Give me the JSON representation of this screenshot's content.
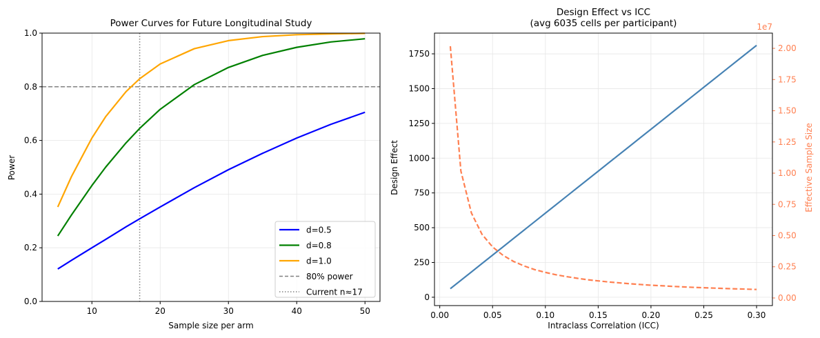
{
  "chart_data": [
    {
      "type": "line",
      "title": "Power Curves for Future Longitudinal Study",
      "xlabel": "Sample size per arm",
      "ylabel": "Power",
      "xlim": [
        2.7,
        52.2
      ],
      "ylim": [
        0,
        1
      ],
      "xticks": [
        "10",
        "20",
        "30",
        "40",
        "50"
      ],
      "yticks": [
        "0.0",
        "0.2",
        "0.4",
        "0.6",
        "0.8",
        "1.0"
      ],
      "grid": true,
      "legend_position": "lower-right",
      "x": [
        5,
        7,
        10,
        12,
        15,
        17,
        20,
        25,
        30,
        35,
        40,
        45,
        50
      ],
      "series": [
        {
          "name": "d=0.5",
          "color": "#0000ff",
          "values": [
            0.121,
            0.153,
            0.2,
            0.231,
            0.278,
            0.308,
            0.352,
            0.424,
            0.491,
            0.552,
            0.609,
            0.66,
            0.705
          ]
        },
        {
          "name": "d=0.8",
          "color": "#008000",
          "values": [
            0.244,
            0.322,
            0.432,
            0.5,
            0.591,
            0.645,
            0.716,
            0.808,
            0.872,
            0.917,
            0.947,
            0.967,
            0.979
          ]
        },
        {
          "name": "d=1.0",
          "color": "#ffa500",
          "values": [
            0.352,
            0.465,
            0.609,
            0.688,
            0.782,
            0.83,
            0.885,
            0.942,
            0.972,
            0.987,
            0.994,
            0.997,
            0.999
          ]
        }
      ],
      "reference_lines": [
        {
          "name": "80% power",
          "orientation": "horizontal",
          "value": 0.8,
          "style": "dashed",
          "color": "#808080"
        },
        {
          "name": "Current n≈17",
          "orientation": "vertical",
          "value": 17,
          "style": "dotted",
          "color": "#808080"
        }
      ]
    },
    {
      "type": "line",
      "title": "Design Effect vs ICC",
      "subtitle": "(avg 6035 cells per participant)",
      "xlabel": "Intraclass Correlation (ICC)",
      "ylabel": "Design Effect",
      "y2label": "Effective Sample Size",
      "y2_offset_label": "1e7",
      "xlim": [
        -0.005,
        0.315
      ],
      "ylim": [
        -60,
        1899
      ],
      "y2lim": [
        -0.061,
        2.122
      ],
      "xticks": [
        "0.00",
        "0.05",
        "0.10",
        "0.15",
        "0.20",
        "0.25",
        "0.30"
      ],
      "yticks": [
        "0",
        "250",
        "500",
        "750",
        "1000",
        "1250",
        "1500",
        "1750"
      ],
      "y2ticks": [
        "0.00",
        "0.25",
        "0.50",
        "0.75",
        "1.00",
        "1.25",
        "1.50",
        "1.75",
        "2.00"
      ],
      "grid": true,
      "x": [
        0.01,
        0.02,
        0.03,
        0.04,
        0.05,
        0.06,
        0.07,
        0.08,
        0.09,
        0.1,
        0.11,
        0.12,
        0.13,
        0.14,
        0.15,
        0.16,
        0.17,
        0.18,
        0.19,
        0.2,
        0.21,
        0.22,
        0.23,
        0.24,
        0.25,
        0.26,
        0.27,
        0.28,
        0.29,
        0.3
      ],
      "series": [
        {
          "axis": "left",
          "color": "#4682b4",
          "style": "solid",
          "values": [
            61.3,
            121.7,
            182.0,
            242.4,
            302.7,
            363.0,
            423.4,
            483.7,
            544.1,
            604.4,
            664.7,
            725.1,
            785.4,
            845.8,
            906.1,
            966.4,
            1026.8,
            1087.1,
            1147.5,
            1207.8,
            1268.1,
            1328.5,
            1388.8,
            1449.2,
            1509.5,
            1569.8,
            1630.2,
            1690.5,
            1750.9,
            1811.2
          ]
        },
        {
          "axis": "right",
          "color": "#ff7f50",
          "style": "dashed",
          "values": [
            2.017,
            1.017,
            0.68,
            0.51,
            0.409,
            0.341,
            0.292,
            0.256,
            0.227,
            0.205,
            0.186,
            0.171,
            0.158,
            0.146,
            0.137,
            0.128,
            0.121,
            0.114,
            0.108,
            0.102,
            0.098,
            0.093,
            0.089,
            0.085,
            0.082,
            0.079,
            0.076,
            0.073,
            0.071,
            0.068
          ]
        }
      ]
    }
  ]
}
